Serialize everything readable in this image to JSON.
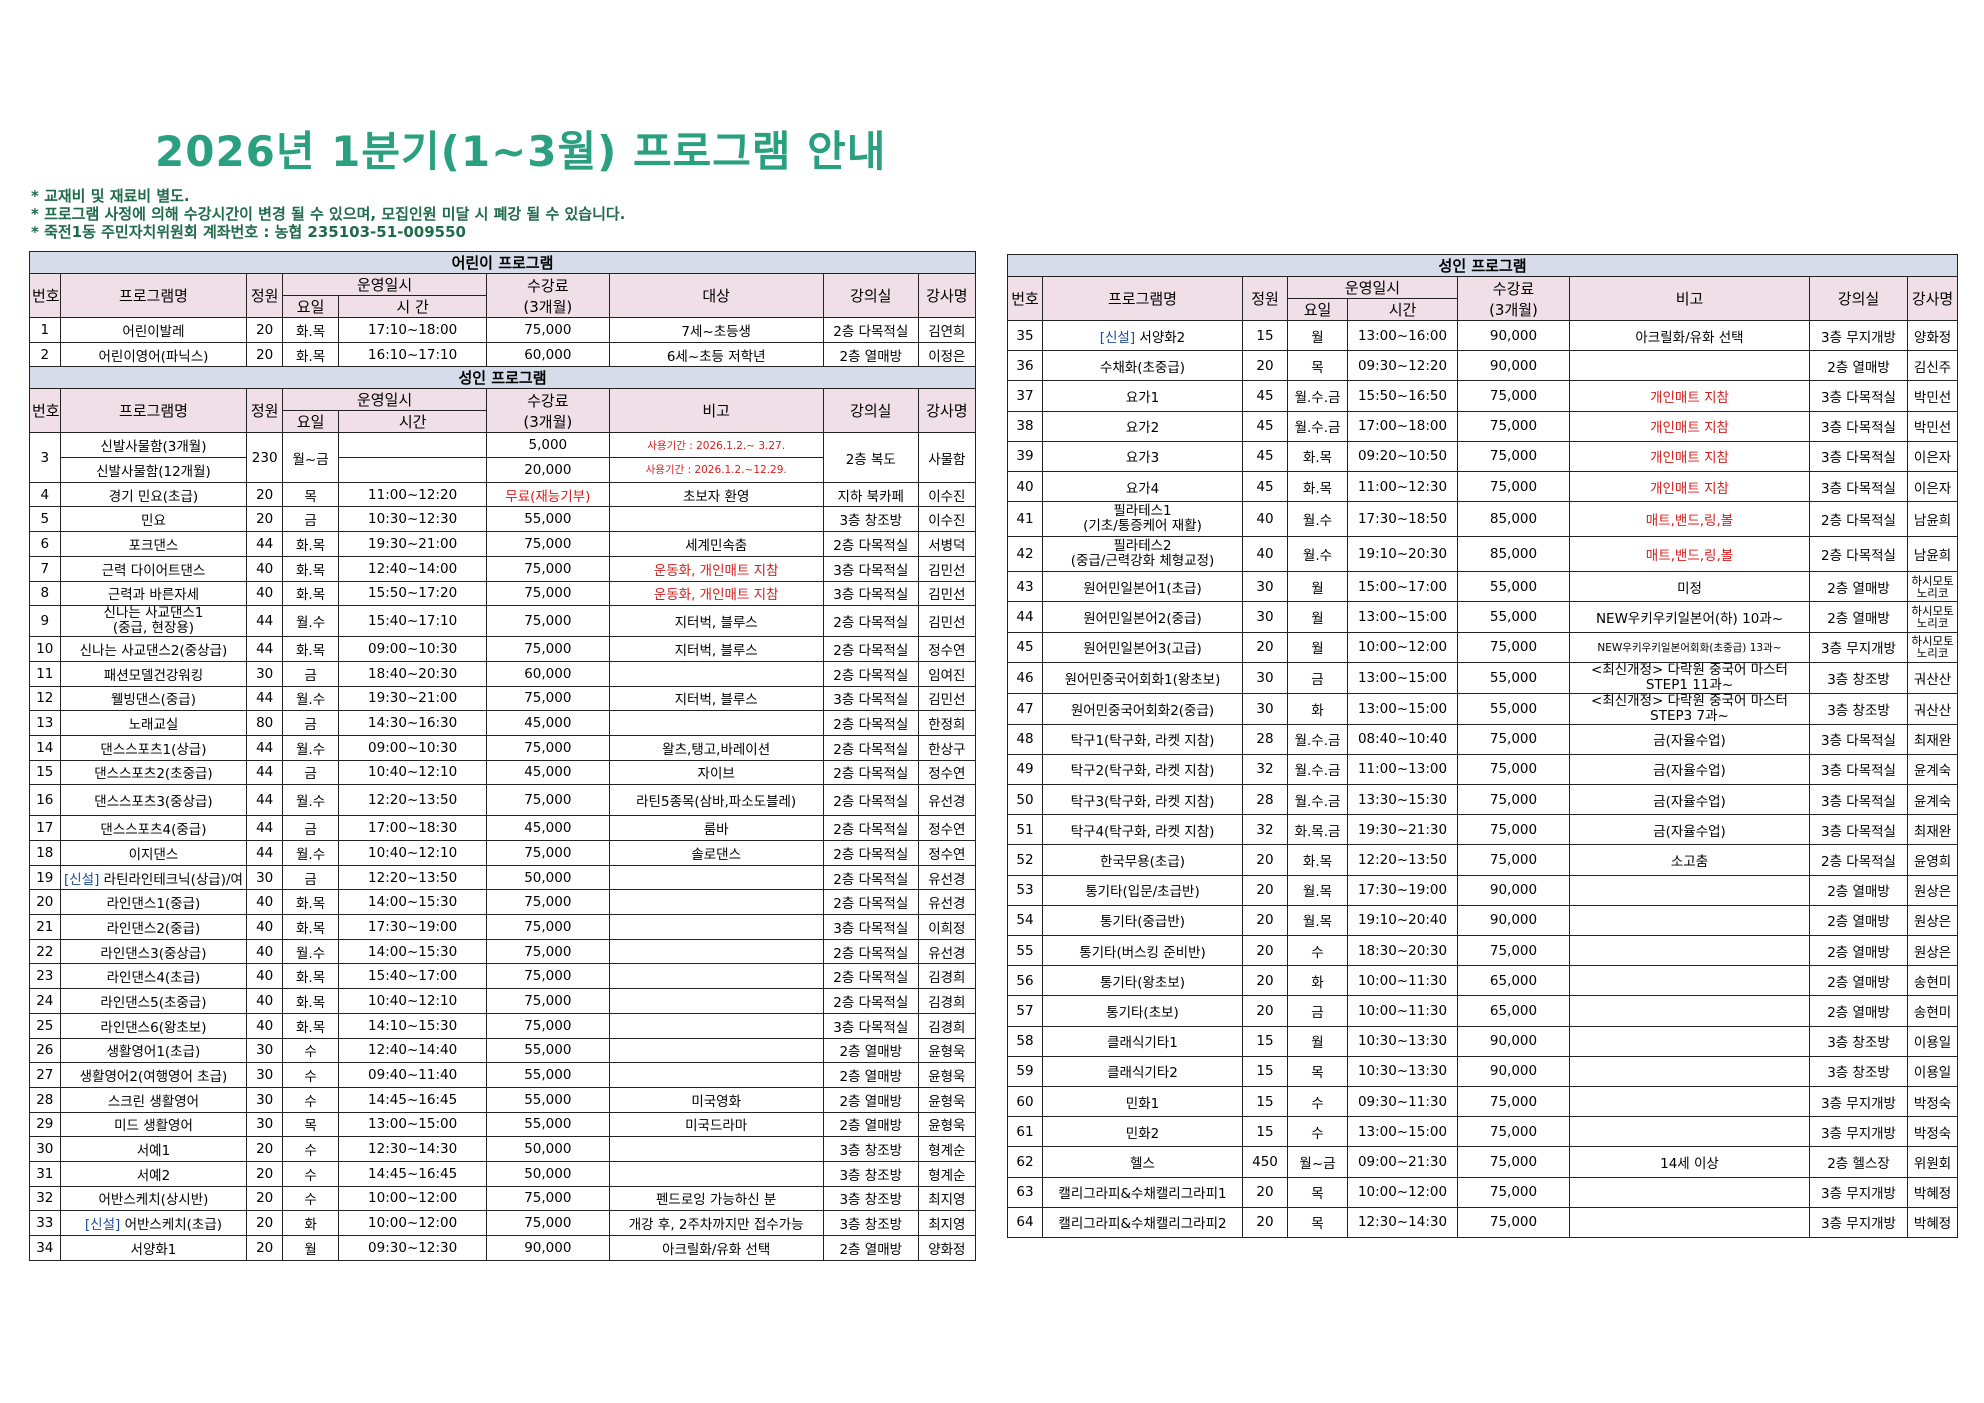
{
  "title": "2026년  1분기(1~3월)  프로그램  안내",
  "notes": [
    "*  교재비  및  재료비  별도.",
    "*  프로그램  사정에  의해  수강시간이  변경  될  수  있으며,  모집인원  미달  시  폐강  될  수  있습니다.",
    "*  죽전1동  주민자치위원회  계좌번호  :  농협  235103-51-009550"
  ],
  "headers": {
    "no": "번호",
    "name": "프로그램명",
    "cap": "정원",
    "schedule": "운영일시",
    "day": "요일",
    "time": "시  간",
    "time2": "시간",
    "fee": "수강료",
    "fee_sub": "(3개월)",
    "target": "대상",
    "remark": "비고",
    "room": "강의실",
    "teacher": "강사명"
  },
  "colors": {
    "title": "#2aa080",
    "notes": "#1f6b4c",
    "section_bg": "#d6dcea",
    "header_bg": "#f0dfe6",
    "red": "#d81c1c",
    "new": "#1b4b9c"
  },
  "kids": {
    "section": "어린이  프로그램",
    "rows": [
      {
        "no": "1",
        "name": "어린이발레",
        "cap": "20",
        "day": "화.목",
        "time": "17:10~18:00",
        "fee": "75,000",
        "target": "7세~초등생",
        "room": "2층  다목적실",
        "teacher": "김연희"
      },
      {
        "no": "2",
        "name": "어린이영어(파닉스)",
        "cap": "20",
        "day": "화.목",
        "time": "16:10~17:10",
        "fee": "60,000",
        "target": "6세~초등  저학년",
        "room": "2층  열매방",
        "teacher": "이정은"
      }
    ]
  },
  "adult_left": {
    "section": "성인  프로그램",
    "row3": {
      "no": "3",
      "name_a": "신발사물함(3개월)",
      "name_b": "신발사물함(12개월)",
      "cap": "230",
      "day": "월~금",
      "fee_a": "5,000",
      "fee_b": "20,000",
      "remark_a": "사용기간  :  2026.1.2.~  3.27.",
      "remark_b": "사용기간  :  2026.1.2.~12.29.",
      "room": "2층  복도",
      "teacher": "사물함"
    },
    "rows": [
      {
        "no": "4",
        "name": "경기  민요(초급)",
        "cap": "20",
        "day": "목",
        "time": "11:00~12:20",
        "fee": "무료(재능기부)",
        "fee_red": true,
        "remark": "초보자  환영",
        "room": "지하  북카페",
        "teacher": "이수진"
      },
      {
        "no": "5",
        "name": "민요",
        "cap": "20",
        "day": "금",
        "time": "10:30~12:30",
        "fee": "55,000",
        "remark": "",
        "room": "3층  창조방",
        "teacher": "이수진"
      },
      {
        "no": "6",
        "name": "포크댄스",
        "cap": "44",
        "day": "화.목",
        "time": "19:30~21:00",
        "fee": "75,000",
        "remark": "세계민속춤",
        "room": "2층  다목적실",
        "teacher": "서병덕"
      },
      {
        "no": "7",
        "name": "근력  다이어트댄스",
        "cap": "40",
        "day": "화.목",
        "time": "12:40~14:00",
        "fee": "75,000",
        "remark": "운동화,  개인매트  지참",
        "remark_red": true,
        "room": "3층  다목적실",
        "teacher": "김민선"
      },
      {
        "no": "8",
        "name": "근력과  바른자세",
        "cap": "40",
        "day": "화.목",
        "time": "15:50~17:20",
        "fee": "75,000",
        "remark": "운동화,  개인매트  지참",
        "remark_red": true,
        "room": "3층  다목적실",
        "teacher": "김민선"
      },
      {
        "no": "9",
        "name": "신나는  사교댄스1",
        "name2": "(중급,  현장용)",
        "cap": "44",
        "day": "월.수",
        "time": "15:40~17:10",
        "fee": "75,000",
        "remark": "지터벅,  블루스",
        "room": "2층  다목적실",
        "teacher": "김민선",
        "tall": true
      },
      {
        "no": "10",
        "name": "신나는  사교댄스2(중상급)",
        "cap": "44",
        "day": "화.목",
        "time": "09:00~10:30",
        "fee": "75,000",
        "remark": "지터벅,  블루스",
        "room": "2층  다목적실",
        "teacher": "정수연"
      },
      {
        "no": "11",
        "name": "패션모델건강워킹",
        "cap": "30",
        "day": "금",
        "time": "18:40~20:30",
        "fee": "60,000",
        "remark": "",
        "room": "2층  다목적실",
        "teacher": "임여진"
      },
      {
        "no": "12",
        "name": "웰빙댄스(중급)",
        "cap": "44",
        "day": "월.수",
        "time": "19:30~21:00",
        "fee": "75,000",
        "remark": "지터벅,  블루스",
        "room": "3층  다목적실",
        "teacher": "김민선"
      },
      {
        "no": "13",
        "name": "노래교실",
        "cap": "80",
        "day": "금",
        "time": "14:30~16:30",
        "fee": "45,000",
        "remark": "",
        "room": "2층  다목적실",
        "teacher": "한정희"
      },
      {
        "no": "14",
        "name": "댄스스포츠1(상급)",
        "cap": "44",
        "day": "월.수",
        "time": "09:00~10:30",
        "fee": "75,000",
        "remark": "왈츠,탱고,바레이션",
        "room": "2층  다목적실",
        "teacher": "한상구"
      },
      {
        "no": "15",
        "name": "댄스스포츠2(초중급)",
        "cap": "44",
        "day": "금",
        "time": "10:40~12:10",
        "fee": "45,000",
        "remark": "자이브",
        "room": "2층  다목적실",
        "teacher": "정수연"
      },
      {
        "no": "16",
        "name": "댄스스포츠3(중상급)",
        "cap": "44",
        "day": "월.수",
        "time": "12:20~13:50",
        "fee": "75,000",
        "remark": "라틴5종목(삼바,파소도블레)",
        "room": "2층  다목적실",
        "teacher": "유선경",
        "tall": true
      },
      {
        "no": "17",
        "name": "댄스스포츠4(중급)",
        "cap": "44",
        "day": "금",
        "time": "17:00~18:30",
        "fee": "45,000",
        "remark": "룸바",
        "room": "2층  다목적실",
        "teacher": "정수연"
      },
      {
        "no": "18",
        "name": "이지댄스",
        "cap": "44",
        "day": "월.수",
        "time": "10:40~12:10",
        "fee": "75,000",
        "remark": "솔로댄스",
        "room": "2층  다목적실",
        "teacher": "정수연"
      },
      {
        "no": "19",
        "new": "[신설]",
        "name": "라틴라인테크닉(상급)/여",
        "cap": "30",
        "day": "금",
        "time": "12:20~13:50",
        "fee": "50,000",
        "remark": "",
        "room": "2층  다목적실",
        "teacher": "유선경"
      },
      {
        "no": "20",
        "name": "라인댄스1(중급)",
        "cap": "40",
        "day": "화.목",
        "time": "14:00~15:30",
        "fee": "75,000",
        "remark": "",
        "room": "2층  다목적실",
        "teacher": "유선경"
      },
      {
        "no": "21",
        "name": "라인댄스2(중급)",
        "cap": "40",
        "day": "화.목",
        "time": "17:30~19:00",
        "fee": "75,000",
        "remark": "",
        "room": "3층  다목적실",
        "teacher": "이희정"
      },
      {
        "no": "22",
        "name": "라인댄스3(중상급)",
        "cap": "40",
        "day": "월.수",
        "time": "14:00~15:30",
        "fee": "75,000",
        "remark": "",
        "room": "2층  다목적실",
        "teacher": "유선경"
      },
      {
        "no": "23",
        "name": "라인댄스4(초급)",
        "cap": "40",
        "day": "화.목",
        "time": "15:40~17:00",
        "fee": "75,000",
        "remark": "",
        "room": "2층  다목적실",
        "teacher": "김경희"
      },
      {
        "no": "24",
        "name": "라인댄스5(초중급)",
        "cap": "40",
        "day": "화.목",
        "time": "10:40~12:10",
        "fee": "75,000",
        "remark": "",
        "room": "2층  다목적실",
        "teacher": "김경희"
      },
      {
        "no": "25",
        "name": "라인댄스6(왕초보)",
        "cap": "40",
        "day": "화.목",
        "time": "14:10~15:30",
        "fee": "75,000",
        "remark": "",
        "room": "3층  다목적실",
        "teacher": "김경희"
      },
      {
        "no": "26",
        "name": "생활영어1(초급)",
        "cap": "30",
        "day": "수",
        "time": "12:40~14:40",
        "fee": "55,000",
        "remark": "",
        "room": "2층  열매방",
        "teacher": "윤형욱"
      },
      {
        "no": "27",
        "name": "생활영어2(여행영어  초급)",
        "cap": "30",
        "day": "수",
        "time": "09:40~11:40",
        "fee": "55,000",
        "remark": "",
        "room": "2층  열매방",
        "teacher": "윤형욱"
      },
      {
        "no": "28",
        "name": "스크린  생활영어",
        "cap": "30",
        "day": "수",
        "time": "14:45~16:45",
        "fee": "55,000",
        "remark": "미국영화",
        "room": "2층  열매방",
        "teacher": "윤형욱"
      },
      {
        "no": "29",
        "name": "미드  생활영어",
        "cap": "30",
        "day": "목",
        "time": "13:00~15:00",
        "fee": "55,000",
        "remark": "미국드라마",
        "room": "2층  열매방",
        "teacher": "윤형욱"
      },
      {
        "no": "30",
        "name": "서예1",
        "cap": "20",
        "day": "수",
        "time": "12:30~14:30",
        "fee": "50,000",
        "remark": "",
        "room": "3층  창조방",
        "teacher": "형계순"
      },
      {
        "no": "31",
        "name": "서예2",
        "cap": "20",
        "day": "수",
        "time": "14:45~16:45",
        "fee": "50,000",
        "remark": "",
        "room": "3층  창조방",
        "teacher": "형계순"
      },
      {
        "no": "32",
        "name": "어반스케치(상시반)",
        "cap": "20",
        "day": "수",
        "time": "10:00~12:00",
        "fee": "75,000",
        "remark": "펜드로잉  가능하신  분",
        "room": "3층  창조방",
        "teacher": "최지영"
      },
      {
        "no": "33",
        "new": "[신설]",
        "name": "어반스케치(초급)",
        "cap": "20",
        "day": "화",
        "time": "10:00~12:00",
        "fee": "75,000",
        "remark": "개강  후,  2주차까지만  접수가능",
        "room": "3층  창조방",
        "teacher": "최지영"
      },
      {
        "no": "34",
        "name": "서양화1",
        "cap": "20",
        "day": "월",
        "time": "09:30~12:30",
        "fee": "90,000",
        "remark": "아크릴화/유화  선택",
        "room": "2층  열매방",
        "teacher": "양화정"
      }
    ]
  },
  "adult_right": {
    "section": "성인  프로그램",
    "rows": [
      {
        "no": "35",
        "new": "[신설]",
        "name": "서양화2",
        "cap": "15",
        "day": "월",
        "time": "13:00~16:00",
        "fee": "90,000",
        "remark": "아크릴화/유화  선택",
        "room": "3층  무지개방",
        "teacher": "양화정"
      },
      {
        "no": "36",
        "name": "수채화(초중급)",
        "cap": "20",
        "day": "목",
        "time": "09:30~12:20",
        "fee": "90,000",
        "remark": "",
        "room": "2층  열매방",
        "teacher": "김신주"
      },
      {
        "no": "37",
        "name": "요가1",
        "cap": "45",
        "day": "월.수.금",
        "time": "15:50~16:50",
        "fee": "75,000",
        "remark": "개인매트  지참",
        "remark_red": true,
        "room": "3층  다목적실",
        "teacher": "박민선"
      },
      {
        "no": "38",
        "name": "요가2",
        "cap": "45",
        "day": "월.수.금",
        "time": "17:00~18:00",
        "fee": "75,000",
        "remark": "개인매트  지참",
        "remark_red": true,
        "room": "3층  다목적실",
        "teacher": "박민선"
      },
      {
        "no": "39",
        "name": "요가3",
        "cap": "45",
        "day": "화.목",
        "time": "09:20~10:50",
        "fee": "75,000",
        "remark": "개인매트  지참",
        "remark_red": true,
        "room": "3층  다목적실",
        "teacher": "이은자"
      },
      {
        "no": "40",
        "name": "요가4",
        "cap": "45",
        "day": "화.목",
        "time": "11:00~12:30",
        "fee": "75,000",
        "remark": "개인매트  지참",
        "remark_red": true,
        "room": "3층  다목적실",
        "teacher": "이은자"
      },
      {
        "no": "41",
        "name": "필라테스1",
        "name2": "(기초/통증케어  재활)",
        "cap": "40",
        "day": "월.수",
        "time": "17:30~18:50",
        "fee": "85,000",
        "remark": "매트,밴드,링,볼",
        "remark_red": true,
        "room": "2층  다목적실",
        "teacher": "남윤희"
      },
      {
        "no": "42",
        "name": "필라테스2",
        "name2": "(중급/근력강화  체형교정)",
        "cap": "40",
        "day": "월.수",
        "time": "19:10~20:30",
        "fee": "85,000",
        "remark": "매트,밴드,링,볼",
        "remark_red": true,
        "room": "2층  다목적실",
        "teacher": "남윤희"
      },
      {
        "no": "43",
        "name": "원어민일본어1(초급)",
        "cap": "30",
        "day": "월",
        "time": "15:00~17:00",
        "fee": "55,000",
        "remark": "미정",
        "room": "2층  열매방",
        "teacher": "하시모토",
        "teacher2": "노리코"
      },
      {
        "no": "44",
        "name": "원어민일본어2(중급)",
        "cap": "30",
        "day": "월",
        "time": "13:00~15:00",
        "fee": "55,000",
        "remark": "NEW우키우키일본어(하)  10과~",
        "room": "2층  열매방",
        "teacher": "하시모토",
        "teacher2": "노리코"
      },
      {
        "no": "45",
        "name": "원어민일본어3(고급)",
        "cap": "20",
        "day": "월",
        "time": "10:00~12:00",
        "fee": "75,000",
        "remark": "NEW우키우키일본어회화(초중급)  13과~",
        "remark_small": true,
        "room": "3층  무지개방",
        "teacher": "하시모토",
        "teacher2": "노리코"
      },
      {
        "no": "46",
        "name": "원어민중국어회화1(왕초보)",
        "cap": "30",
        "day": "금",
        "time": "13:00~15:00",
        "fee": "55,000",
        "remark": "<최신개정>  다락원  중국어  마스터",
        "remark2": "STEP1  11과~",
        "room": "3층  창조방",
        "teacher": "궈산산"
      },
      {
        "no": "47",
        "name": "원어민중국어회화2(중급)",
        "cap": "30",
        "day": "화",
        "time": "13:00~15:00",
        "fee": "55,000",
        "remark": "<최신개정>  다락원  중국어  마스터",
        "remark2": "STEP3  7과~",
        "room": "3층  창조방",
        "teacher": "궈산산"
      },
      {
        "no": "48",
        "name": "탁구1(탁구화,  라켓  지참)",
        "cap": "28",
        "day": "월.수.금",
        "time": "08:40~10:40",
        "fee": "75,000",
        "remark": "금(자율수업)",
        "room": "3층  다목적실",
        "teacher": "최재완"
      },
      {
        "no": "49",
        "name": "탁구2(탁구화,  라켓  지참)",
        "cap": "32",
        "day": "월.수.금",
        "time": "11:00~13:00",
        "fee": "75,000",
        "remark": "금(자율수업)",
        "room": "3층  다목적실",
        "teacher": "윤계숙"
      },
      {
        "no": "50",
        "name": "탁구3(탁구화,  라켓  지참)",
        "cap": "28",
        "day": "월.수.금",
        "time": "13:30~15:30",
        "fee": "75,000",
        "remark": "금(자율수업)",
        "room": "3층  다목적실",
        "teacher": "윤계숙"
      },
      {
        "no": "51",
        "name": "탁구4(탁구화,  라켓  지참)",
        "cap": "32",
        "day": "화.목.금",
        "time": "19:30~21:30",
        "fee": "75,000",
        "remark": "금(자율수업)",
        "room": "3층  다목적실",
        "teacher": "최재완"
      },
      {
        "no": "52",
        "name": "한국무용(초급)",
        "cap": "20",
        "day": "화.목",
        "time": "12:20~13:50",
        "fee": "75,000",
        "remark": "소고춤",
        "room": "2층  다목적실",
        "teacher": "윤영희"
      },
      {
        "no": "53",
        "name": "통기타(입문/초급반)",
        "cap": "20",
        "day": "월.목",
        "time": "17:30~19:00",
        "fee": "90,000",
        "remark": "",
        "room": "2층  열매방",
        "teacher": "원상은"
      },
      {
        "no": "54",
        "name": "통기타(중급반)",
        "cap": "20",
        "day": "월.목",
        "time": "19:10~20:40",
        "fee": "90,000",
        "remark": "",
        "room": "2층  열매방",
        "teacher": "원상은"
      },
      {
        "no": "55",
        "name": "통기타(버스킹  준비반)",
        "cap": "20",
        "day": "수",
        "time": "18:30~20:30",
        "fee": "75,000",
        "remark": "",
        "room": "2층  열매방",
        "teacher": "원상은"
      },
      {
        "no": "56",
        "name": "통기타(왕초보)",
        "cap": "20",
        "day": "화",
        "time": "10:00~11:30",
        "fee": "65,000",
        "remark": "",
        "room": "2층  열매방",
        "teacher": "송현미"
      },
      {
        "no": "57",
        "name": "통기타(초보)",
        "cap": "20",
        "day": "금",
        "time": "10:00~11:30",
        "fee": "65,000",
        "remark": "",
        "room": "2층  열매방",
        "teacher": "송현미"
      },
      {
        "no": "58",
        "name": "클래식기타1",
        "cap": "15",
        "day": "월",
        "time": "10:30~13:30",
        "fee": "90,000",
        "remark": "",
        "room": "3층  창조방",
        "teacher": "이용일"
      },
      {
        "no": "59",
        "name": "클래식기타2",
        "cap": "15",
        "day": "목",
        "time": "10:30~13:30",
        "fee": "90,000",
        "remark": "",
        "room": "3층  창조방",
        "teacher": "이용일"
      },
      {
        "no": "60",
        "name": "민화1",
        "cap": "15",
        "day": "수",
        "time": "09:30~11:30",
        "fee": "75,000",
        "remark": "",
        "room": "3층  무지개방",
        "teacher": "박정숙"
      },
      {
        "no": "61",
        "name": "민화2",
        "cap": "15",
        "day": "수",
        "time": "13:00~15:00",
        "fee": "75,000",
        "remark": "",
        "room": "3층  무지개방",
        "teacher": "박정숙"
      },
      {
        "no": "62",
        "name": "헬스",
        "cap": "450",
        "day": "월~금",
        "time": "09:00~21:30",
        "fee": "75,000",
        "remark": "14세  이상",
        "room": "2층  헬스장",
        "teacher": "위원회"
      },
      {
        "no": "63",
        "name": "캘리그라피&수채캘리그라피1",
        "cap": "20",
        "day": "목",
        "time": "10:00~12:00",
        "fee": "75,000",
        "remark": "",
        "room": "3층  무지개방",
        "teacher": "박혜정"
      },
      {
        "no": "64",
        "name": "캘리그라피&수채캘리그라피2",
        "cap": "20",
        "day": "목",
        "time": "12:30~14:30",
        "fee": "75,000",
        "remark": "",
        "room": "3층  무지개방",
        "teacher": "박혜정"
      }
    ]
  }
}
